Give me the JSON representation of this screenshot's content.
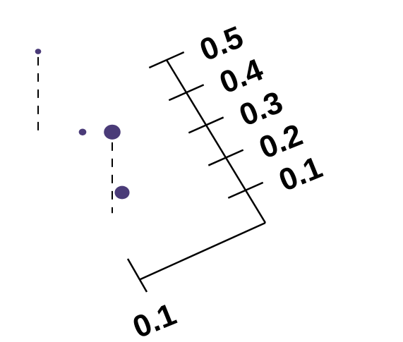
{
  "chart_data": {
    "type": "scatter",
    "title": "",
    "xlabel": "",
    "ylabel": "",
    "marker_color": "#4a3b78",
    "axis_color": "#000000",
    "grid": false,
    "x_axis": {
      "ticks": [
        0.1
      ],
      "tick_labels": [
        "0.1"
      ]
    },
    "y_axis": {
      "ticks": [
        0.1,
        0.2,
        0.3,
        0.4,
        0.5
      ],
      "tick_labels": [
        "0.1",
        "0.2",
        "0.3",
        "0.4",
        "0.5"
      ],
      "range": [
        0.0,
        0.5
      ]
    },
    "points": [
      {
        "x": 0.36,
        "y": 0.5,
        "size": 0.6,
        "drop_line": true
      },
      {
        "x": 0.27,
        "y": 0.34,
        "size": 1.0,
        "drop_line": false
      },
      {
        "x": 0.21,
        "y": 0.34,
        "size": 3.5,
        "drop_line": true
      },
      {
        "x": 0.19,
        "y": 0.22,
        "size": 3.0,
        "drop_line": false
      }
    ]
  }
}
